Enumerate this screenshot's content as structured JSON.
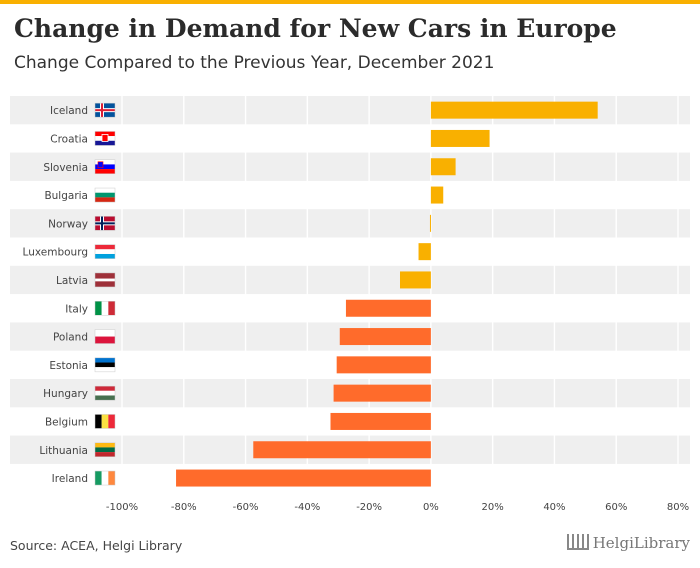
{
  "header": {
    "title": "Change in Demand for New Cars in Europe",
    "subtitle": "Change Compared to the Previous Year, December 2021"
  },
  "footer": {
    "source": "Source: ACEA, Helgi Library",
    "logo_text": "HelgiLibrary"
  },
  "colors": {
    "positive": "#f9b000",
    "negative": "#ff6b2b",
    "band": "#efefef",
    "accent": "#f9b000"
  },
  "chart_data": {
    "type": "bar",
    "orientation": "horizontal",
    "categories": [
      "Iceland",
      "Croatia",
      "Slovenia",
      "Bulgaria",
      "Norway",
      "Luxembourg",
      "Latvia",
      "Italy",
      "Poland",
      "Estonia",
      "Hungary",
      "Belgium",
      "Lithuania",
      "Ireland"
    ],
    "values": [
      54,
      19,
      8,
      4,
      -0.3,
      -4,
      -10,
      -27.5,
      -29.5,
      -30.5,
      -31.5,
      -32.5,
      -57.5,
      -82.5
    ],
    "xlim": [
      -100,
      80
    ],
    "xticks": [
      -100,
      -80,
      -60,
      -40,
      -20,
      0,
      20,
      40,
      60,
      80
    ],
    "xtick_labels": [
      "-100%",
      "-80%",
      "-60%",
      "-40%",
      "-20%",
      "0%",
      "20%",
      "40%",
      "60%",
      "80%"
    ],
    "grid": true,
    "flags": [
      "iceland-flag",
      "croatia-flag",
      "slovenia-flag",
      "bulgaria-flag",
      "norway-flag",
      "luxembourg-flag",
      "latvia-flag",
      "italy-flag",
      "poland-flag",
      "estonia-flag",
      "hungary-flag",
      "belgium-flag",
      "lithuania-flag",
      "ireland-flag"
    ]
  }
}
